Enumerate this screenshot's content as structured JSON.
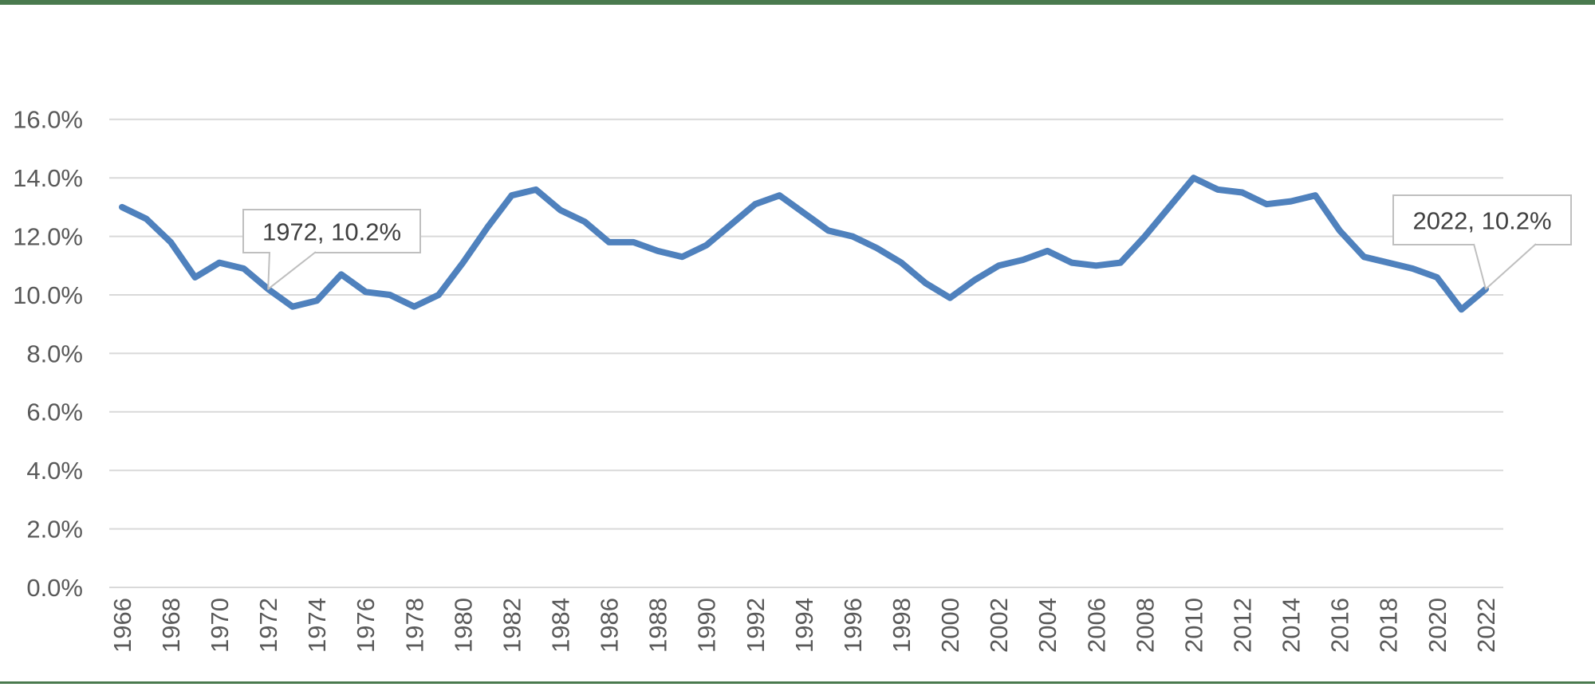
{
  "page": {
    "title": "",
    "colors": {
      "border_green": "#4a7a4e",
      "line_blue": "#4f81bd",
      "gridline_gray": "#d9d9d9",
      "axis_text_gray": "#595959",
      "callout_text_gray": "#404040",
      "callout_border_gray": "#bfbfbf",
      "background": "#ffffff"
    }
  },
  "chart_data": {
    "type": "line",
    "title": "",
    "xlabel": "",
    "ylabel": "",
    "units": "%",
    "grid": "horizontal",
    "legend": "none",
    "ylim": [
      0,
      16
    ],
    "x": [
      1966,
      1967,
      1968,
      1969,
      1970,
      1971,
      1972,
      1973,
      1974,
      1975,
      1976,
      1977,
      1978,
      1979,
      1980,
      1981,
      1982,
      1983,
      1984,
      1985,
      1986,
      1987,
      1988,
      1989,
      1990,
      1991,
      1992,
      1993,
      1994,
      1995,
      1996,
      1997,
      1998,
      1999,
      2000,
      2001,
      2002,
      2003,
      2004,
      2005,
      2006,
      2007,
      2008,
      2009,
      2010,
      2011,
      2012,
      2013,
      2014,
      2015,
      2016,
      2017,
      2018,
      2019,
      2020,
      2021,
      2022
    ],
    "series": [
      {
        "name": "percent",
        "values": [
          13.0,
          12.6,
          11.8,
          10.6,
          11.1,
          10.9,
          10.2,
          9.6,
          9.8,
          10.7,
          10.1,
          10.0,
          9.6,
          10.0,
          11.1,
          12.3,
          13.4,
          13.6,
          12.9,
          12.5,
          11.8,
          11.8,
          11.5,
          11.3,
          11.7,
          12.4,
          13.1,
          13.4,
          12.8,
          12.2,
          12.0,
          11.6,
          11.1,
          10.4,
          9.9,
          10.5,
          11.0,
          11.2,
          11.5,
          11.1,
          11.0,
          11.1,
          12.0,
          13.0,
          14.0,
          13.6,
          13.5,
          13.1,
          13.2,
          13.4,
          12.2,
          11.3,
          11.1,
          10.9,
          10.6,
          9.5,
          10.2
        ]
      }
    ],
    "y_ticks": {
      "values": [
        0,
        2,
        4,
        6,
        8,
        10,
        12,
        14,
        16
      ],
      "labels": [
        "0.0%",
        "2.0%",
        "4.0%",
        "6.0%",
        "8.0%",
        "10.0%",
        "12.0%",
        "14.0%",
        "16.0%"
      ]
    },
    "x_tick_labels": [
      "1966",
      "1968",
      "1970",
      "1972",
      "1974",
      "1976",
      "1978",
      "1980",
      "1982",
      "1984",
      "1986",
      "1988",
      "1990",
      "1992",
      "1994",
      "1996",
      "1998",
      "2000",
      "2002",
      "2004",
      "2006",
      "2008",
      "2010",
      "2012",
      "2014",
      "2016",
      "2018",
      "2020",
      "2022"
    ],
    "annotations": [
      {
        "x": 1972,
        "y": 10.2,
        "text": "1972, 10.2%"
      },
      {
        "x": 2022,
        "y": 10.2,
        "text": "2022, 10.2%"
      }
    ]
  }
}
